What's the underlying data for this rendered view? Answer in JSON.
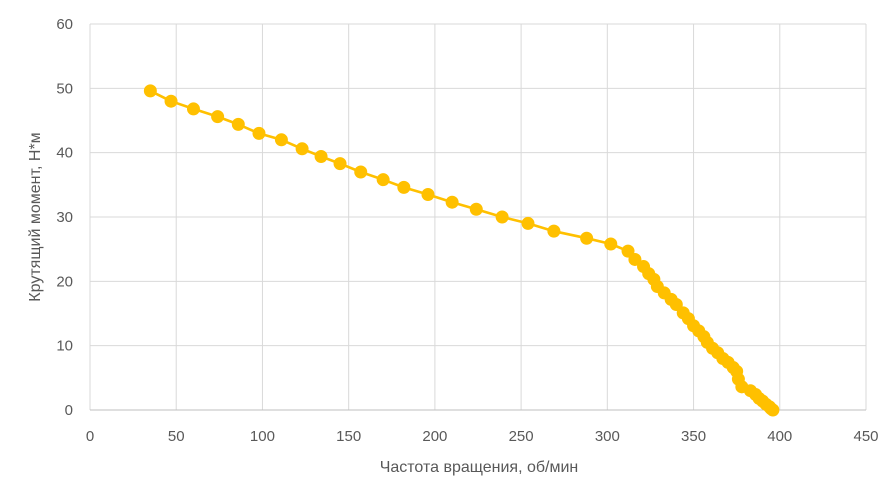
{
  "chart_data": {
    "type": "scatter",
    "title": "",
    "xlabel": "Частота вращения, об/мин",
    "ylabel": "Крутящий момент, Н*м",
    "xlim": [
      0,
      450
    ],
    "ylim": [
      0,
      60
    ],
    "xticks": [
      0,
      50,
      100,
      150,
      200,
      250,
      300,
      350,
      400,
      450
    ],
    "yticks": [
      0,
      10,
      20,
      30,
      40,
      50,
      60
    ],
    "grid": true,
    "legend": "none",
    "series": [
      {
        "color": "#ffc000",
        "lines": true,
        "markers": true,
        "points": [
          [
            35,
            49.6
          ],
          [
            47,
            48.0
          ],
          [
            60,
            46.8
          ],
          [
            74,
            45.6
          ],
          [
            86,
            44.4
          ],
          [
            98,
            43.0
          ],
          [
            111,
            42.0
          ],
          [
            123,
            40.6
          ],
          [
            134,
            39.4
          ],
          [
            145,
            38.3
          ],
          [
            157,
            37.0
          ],
          [
            170,
            35.8
          ],
          [
            182,
            34.6
          ],
          [
            196,
            33.5
          ],
          [
            210,
            32.3
          ],
          [
            224,
            31.2
          ],
          [
            239,
            30.0
          ],
          [
            254,
            29.0
          ],
          [
            269,
            27.8
          ],
          [
            288,
            26.7
          ],
          [
            302,
            25.8
          ],
          [
            312,
            24.7
          ],
          [
            316,
            23.4
          ],
          [
            321,
            22.3
          ],
          [
            324,
            21.2
          ],
          [
            327,
            20.3
          ],
          [
            329,
            19.2
          ],
          [
            333,
            18.2
          ],
          [
            337,
            17.2
          ],
          [
            340,
            16.4
          ],
          [
            344,
            15.1
          ],
          [
            347,
            14.2
          ],
          [
            350,
            13.1
          ],
          [
            353,
            12.3
          ],
          [
            356,
            11.4
          ],
          [
            358,
            10.5
          ],
          [
            361,
            9.6
          ],
          [
            364,
            8.9
          ],
          [
            367,
            8.0
          ],
          [
            370,
            7.4
          ],
          [
            373,
            6.6
          ],
          [
            375,
            6.0
          ],
          [
            376,
            4.8
          ],
          [
            378,
            3.6
          ],
          [
            383,
            3.0
          ],
          [
            386,
            2.4
          ],
          [
            388,
            1.8
          ],
          [
            390,
            1.4
          ],
          [
            392,
            0.9
          ],
          [
            394,
            0.5
          ],
          [
            395,
            0.2
          ],
          [
            396,
            0.0
          ]
        ]
      }
    ]
  }
}
